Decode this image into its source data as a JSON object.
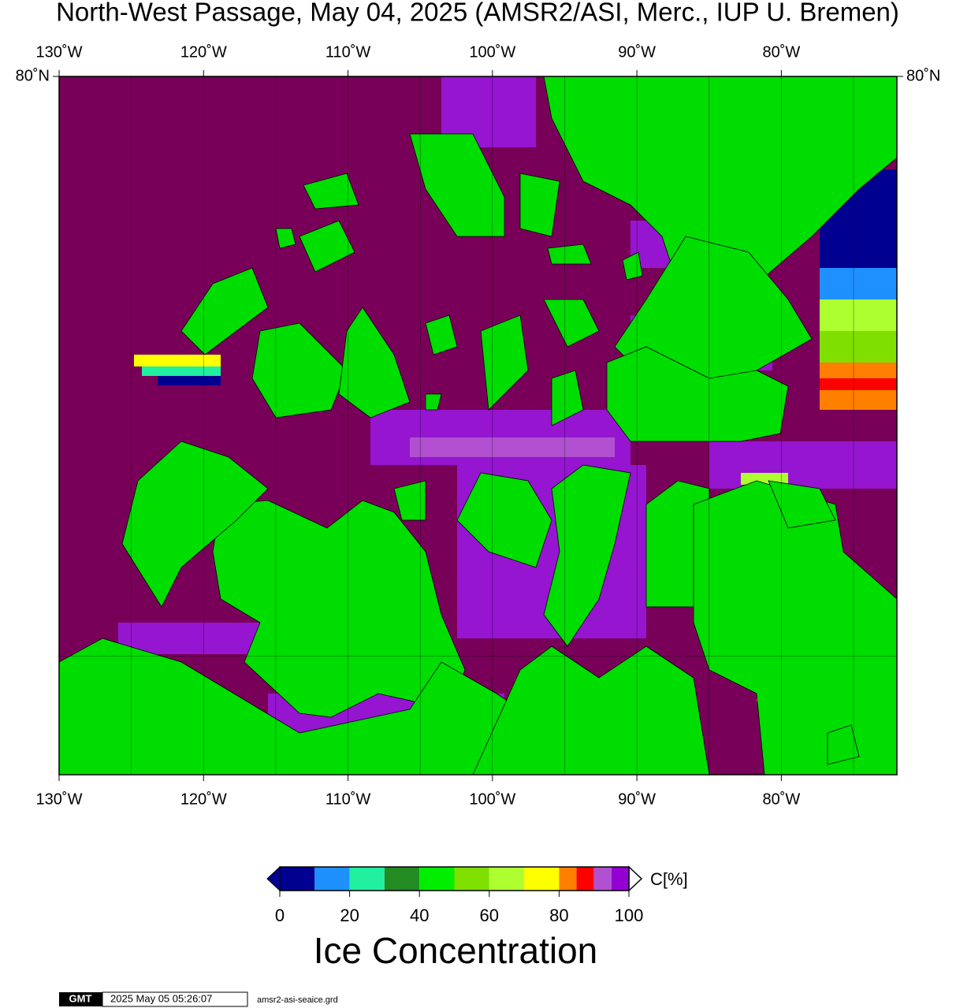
{
  "title": "North-West Passage, May 04, 2025 (AMSR2/ASI, Merc., IUP U. Bremen)",
  "map": {
    "lonlim": [
      -130,
      -72
    ],
    "latlim": [
      67,
      80
    ],
    "lon_ticks": [
      {
        "value": -130,
        "label": "130˚W"
      },
      {
        "value": -120,
        "label": "120˚W"
      },
      {
        "value": -110,
        "label": "110˚W"
      },
      {
        "value": -100,
        "label": "100˚W"
      },
      {
        "value": -90,
        "label": "90˚W"
      },
      {
        "value": -80,
        "label": "80˚W"
      }
    ],
    "lat_ticks": [
      {
        "value": 80,
        "label": "80˚N"
      }
    ],
    "grid_lon": [
      -125,
      -120,
      -115,
      -110,
      -105,
      -100,
      -95,
      -90,
      -85,
      -80,
      -75
    ],
    "grid_lat": [
      70
    ]
  },
  "colorbar": {
    "bounds": [
      0,
      10,
      20,
      30,
      40,
      50,
      60,
      70,
      80,
      85,
      90,
      95,
      100
    ],
    "colors": [
      "#000090",
      "#1e90ff",
      "#20f0a0",
      "#228b22",
      "#00ee00",
      "#7fe000",
      "#adff2f",
      "#ffff00",
      "#ff7f00",
      "#ff0000",
      "#b050d0",
      "#9400d3"
    ],
    "ticks": [
      0,
      20,
      40,
      60,
      80,
      100
    ],
    "unit_label": "C[%]",
    "title": "Ice Concentration"
  },
  "footer": {
    "logo": "GMT",
    "timestamp": "2025 May 05 05:26:07",
    "file": "amsr2-asi-seaice.grd"
  }
}
